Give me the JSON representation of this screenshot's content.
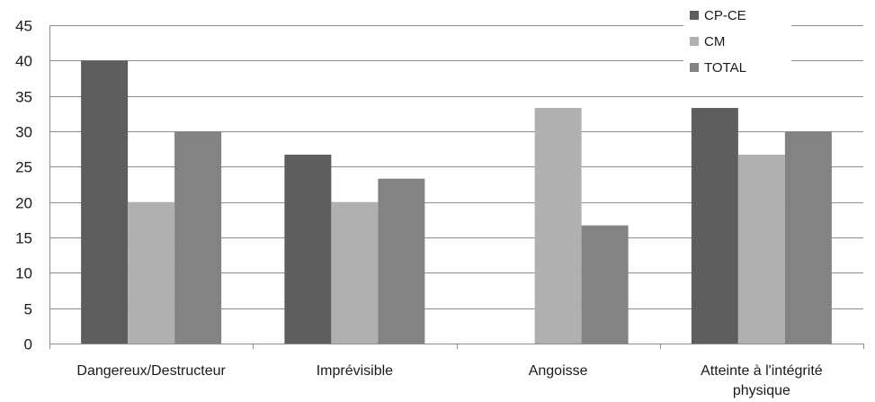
{
  "chart_data": {
    "type": "bar",
    "categories": [
      [
        "Dangereux/Destructeur"
      ],
      [
        "Imprévisible"
      ],
      [
        "Angoisse"
      ],
      [
        "Atteinte à l'intégrité",
        "physique"
      ]
    ],
    "series": [
      {
        "name": "CP-CE",
        "color": "#5e5e5e",
        "values": [
          40,
          26.7,
          0,
          33.3
        ]
      },
      {
        "name": "CM",
        "color": "#b0b0b0",
        "values": [
          20,
          20,
          33.3,
          26.7
        ]
      },
      {
        "name": "TOTAL",
        "color": "#838383",
        "values": [
          30,
          23.3,
          16.7,
          30
        ]
      }
    ],
    "yticks": [
      "0",
      "5",
      "10",
      "15",
      "20",
      "25",
      "30",
      "35",
      "40",
      "45"
    ],
    "ylim": [
      0,
      45
    ],
    "grid": true,
    "legend": "top-right",
    "title": "",
    "xlabel": "",
    "ylabel": ""
  }
}
